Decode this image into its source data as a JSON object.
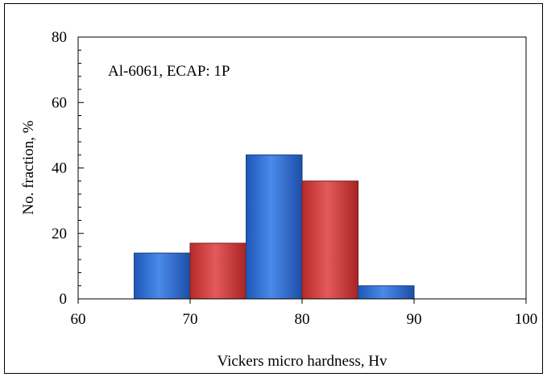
{
  "chart_data": {
    "type": "bar",
    "xlabel": "Vickers micro hardness, Hv",
    "ylabel": "No. fraction, %",
    "annotation": "Al-6061,  ECAP: 1P",
    "xlim": [
      60,
      100
    ],
    "ylim": [
      0,
      80
    ],
    "xticks": [
      "60",
      "70",
      "80",
      "90",
      "100"
    ],
    "yticks": [
      "0",
      "20",
      "40",
      "60",
      "80"
    ],
    "bins": [
      {
        "from": 65,
        "to": 70,
        "value": 14,
        "color": "#2f6fd0"
      },
      {
        "from": 70,
        "to": 75,
        "value": 17,
        "color": "#d03a3a"
      },
      {
        "from": 75,
        "to": 80,
        "value": 44,
        "color": "#2f6fd0"
      },
      {
        "from": 80,
        "to": 85,
        "value": 36,
        "color": "#d03a3a"
      },
      {
        "from": 85,
        "to": 90,
        "value": 4,
        "color": "#2f6fd0"
      }
    ],
    "grid": false,
    "legend": "none"
  }
}
